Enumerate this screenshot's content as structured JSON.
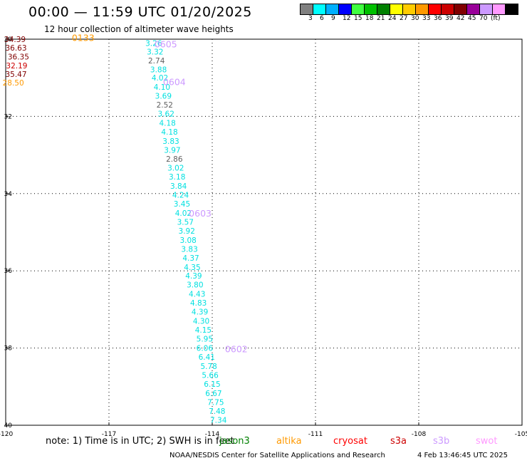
{
  "header": {
    "title": "00:00 — 11:59 UTC 01/20/2025",
    "subtitle": "12 hour collection of altimeter wave heights"
  },
  "colorbar": {
    "colors": [
      "#808080",
      "#00ffff",
      "#00b0ff",
      "#0000ff",
      "#40ff40",
      "#00c000",
      "#008000",
      "#ffff00",
      "#ffcc00",
      "#ff9900",
      "#ff0000",
      "#cc0000",
      "#800000",
      "#990099",
      "#cc99ff",
      "#ff99ff",
      "#000000"
    ],
    "labels": [
      "3",
      "6",
      "9",
      "12",
      "15",
      "18",
      "21",
      "24",
      "27",
      "30",
      "33",
      "36",
      "39",
      "42",
      "45",
      "70",
      "(ft)"
    ]
  },
  "axes": {
    "lon_ticks": [
      {
        "value": -120,
        "label": "-120"
      },
      {
        "value": -117,
        "label": "-117"
      },
      {
        "value": -114,
        "label": "-114"
      },
      {
        "value": -111,
        "label": "-111"
      },
      {
        "value": -108,
        "label": "-108"
      },
      {
        "value": -105,
        "label": "-105"
      }
    ],
    "lat_ticks": [
      {
        "value": 30,
        "label": "30"
      },
      {
        "value": 32,
        "label": "32"
      },
      {
        "value": 34,
        "label": "34"
      },
      {
        "value": 36,
        "label": "36"
      },
      {
        "value": 38,
        "label": "38"
      },
      {
        "value": 40,
        "label": "40"
      }
    ],
    "lon_range": [
      -120,
      -105
    ],
    "lat_range": [
      30,
      40
    ],
    "grid": "dotted"
  },
  "observations": [
    {
      "lon": -119.73,
      "lat": 30.0,
      "value": "34.39",
      "color": "#800000"
    },
    {
      "lon": -119.7,
      "lat": 30.22,
      "value": "36.63",
      "color": "#800000"
    },
    {
      "lon": -119.63,
      "lat": 30.45,
      "value": "36.35",
      "color": "#800000"
    },
    {
      "lon": -119.68,
      "lat": 30.68,
      "value": "32.19",
      "color": "#cc0000"
    },
    {
      "lon": -119.7,
      "lat": 30.9,
      "value": "35.47",
      "color": "#800000"
    },
    {
      "lon": -119.78,
      "lat": 31.13,
      "value": "28.50",
      "color": "#ff9900"
    },
    {
      "lon": -115.7,
      "lat": 30.1,
      "value": "3.26",
      "color": "#00e0e0"
    },
    {
      "lon": -115.66,
      "lat": 30.32,
      "value": "3.32",
      "color": "#00e0e0"
    },
    {
      "lon": -115.62,
      "lat": 30.55,
      "value": "2.74",
      "color": "#606060"
    },
    {
      "lon": -115.56,
      "lat": 30.78,
      "value": "3.88",
      "color": "#00e0e0"
    },
    {
      "lon": -115.52,
      "lat": 31.0,
      "value": "4.02",
      "color": "#00e0e0"
    },
    {
      "lon": -115.46,
      "lat": 31.24,
      "value": "4.10",
      "color": "#00e0e0"
    },
    {
      "lon": -115.42,
      "lat": 31.47,
      "value": "3.69",
      "color": "#00e0e0"
    },
    {
      "lon": -115.38,
      "lat": 31.7,
      "value": "2.52",
      "color": "#606060"
    },
    {
      "lon": -115.34,
      "lat": 31.93,
      "value": "3.62",
      "color": "#00e0e0"
    },
    {
      "lon": -115.3,
      "lat": 32.17,
      "value": "4.18",
      "color": "#00e0e0"
    },
    {
      "lon": -115.24,
      "lat": 32.4,
      "value": "4.18",
      "color": "#00e0e0"
    },
    {
      "lon": -115.2,
      "lat": 32.64,
      "value": "3.83",
      "color": "#00e0e0"
    },
    {
      "lon": -115.16,
      "lat": 32.87,
      "value": "3.97",
      "color": "#00e0e0"
    },
    {
      "lon": -115.1,
      "lat": 33.1,
      "value": "2.86",
      "color": "#606060"
    },
    {
      "lon": -115.06,
      "lat": 33.33,
      "value": "3.02",
      "color": "#00e0e0"
    },
    {
      "lon": -115.02,
      "lat": 33.56,
      "value": "3.18",
      "color": "#00e0e0"
    },
    {
      "lon": -114.98,
      "lat": 33.8,
      "value": "3.84",
      "color": "#00e0e0"
    },
    {
      "lon": -114.92,
      "lat": 34.03,
      "value": "4.24",
      "color": "#00e0e0"
    },
    {
      "lon": -114.88,
      "lat": 34.26,
      "value": "3.45",
      "color": "#00e0e0"
    },
    {
      "lon": -114.84,
      "lat": 34.5,
      "value": "4.02",
      "color": "#00e0e0"
    },
    {
      "lon": -114.78,
      "lat": 34.73,
      "value": "3.57",
      "color": "#00e0e0"
    },
    {
      "lon": -114.74,
      "lat": 34.96,
      "value": "3.92",
      "color": "#00e0e0"
    },
    {
      "lon": -114.7,
      "lat": 35.2,
      "value": "3.08",
      "color": "#00e0e0"
    },
    {
      "lon": -114.66,
      "lat": 35.43,
      "value": "3.83",
      "color": "#00e0e0"
    },
    {
      "lon": -114.62,
      "lat": 35.66,
      "value": "4.37",
      "color": "#00e0e0"
    },
    {
      "lon": -114.58,
      "lat": 35.9,
      "value": "4.35",
      "color": "#00e0e0"
    },
    {
      "lon": -114.54,
      "lat": 36.13,
      "value": "4.39",
      "color": "#00e0e0"
    },
    {
      "lon": -114.5,
      "lat": 36.36,
      "value": "3.80",
      "color": "#00e0e0"
    },
    {
      "lon": -114.44,
      "lat": 36.6,
      "value": "4.43",
      "color": "#00e0e0"
    },
    {
      "lon": -114.4,
      "lat": 36.83,
      "value": "4.83",
      "color": "#00e0e0"
    },
    {
      "lon": -114.36,
      "lat": 37.06,
      "value": "4.39",
      "color": "#00e0e0"
    },
    {
      "lon": -114.32,
      "lat": 37.3,
      "value": "4.30",
      "color": "#00e0e0"
    },
    {
      "lon": -114.26,
      "lat": 37.53,
      "value": "4.15",
      "color": "#00e0e0"
    },
    {
      "lon": -114.22,
      "lat": 37.76,
      "value": "5.95",
      "color": "#00e0e0"
    },
    {
      "lon": -114.22,
      "lat": 38.0,
      "value": "6.06",
      "color": "#00e0e0"
    },
    {
      "lon": -114.16,
      "lat": 38.23,
      "value": "6.41",
      "color": "#00e0e0"
    },
    {
      "lon": -114.1,
      "lat": 38.47,
      "value": "5.78",
      "color": "#00e0e0"
    },
    {
      "lon": -114.06,
      "lat": 38.7,
      "value": "5.66",
      "color": "#00e0e0"
    },
    {
      "lon": -114.0,
      "lat": 38.93,
      "value": "6.15",
      "color": "#00e0e0"
    },
    {
      "lon": -113.96,
      "lat": 39.17,
      "value": "6.67",
      "color": "#00e0e0"
    },
    {
      "lon": -113.9,
      "lat": 39.4,
      "value": "7.75",
      "color": "#00e0e0"
    },
    {
      "lon": -113.86,
      "lat": 39.63,
      "value": "7.48",
      "color": "#00e0e0"
    },
    {
      "lon": -113.82,
      "lat": 39.86,
      "value": "7.34",
      "color": "#00e0e0"
    }
  ],
  "pass_labels": [
    {
      "lon": -117.75,
      "lat": 29.95,
      "label": "0133",
      "color": "#ff9900"
    },
    {
      "lon": -115.35,
      "lat": 30.12,
      "label": "0605",
      "color": "#cc99ff"
    },
    {
      "lon": -115.1,
      "lat": 31.1,
      "label": "0604",
      "color": "#cc99ff"
    },
    {
      "lon": -114.35,
      "lat": 34.5,
      "label": "0603",
      "color": "#cc99ff"
    },
    {
      "lon": -113.3,
      "lat": 38.02,
      "label": "0602",
      "color": "#cc99ff"
    }
  ],
  "footer": {
    "note": "note:  1) Time is in UTC; 2) SWH is in feet",
    "legend": [
      {
        "name": "jason3",
        "color": "#008000"
      },
      {
        "name": "altika",
        "color": "#ff9900"
      },
      {
        "name": "cryosat",
        "color": "#ff0000"
      },
      {
        "name": "s3a",
        "color": "#cc0000"
      },
      {
        "name": "s3b",
        "color": "#cc99ff"
      },
      {
        "name": "swot",
        "color": "#ff99ff"
      }
    ],
    "credits": "NOAA/NESDIS Center for Satellite Applications and Research",
    "timestamp": "4 Feb 13:46:45 UTC 2025"
  }
}
